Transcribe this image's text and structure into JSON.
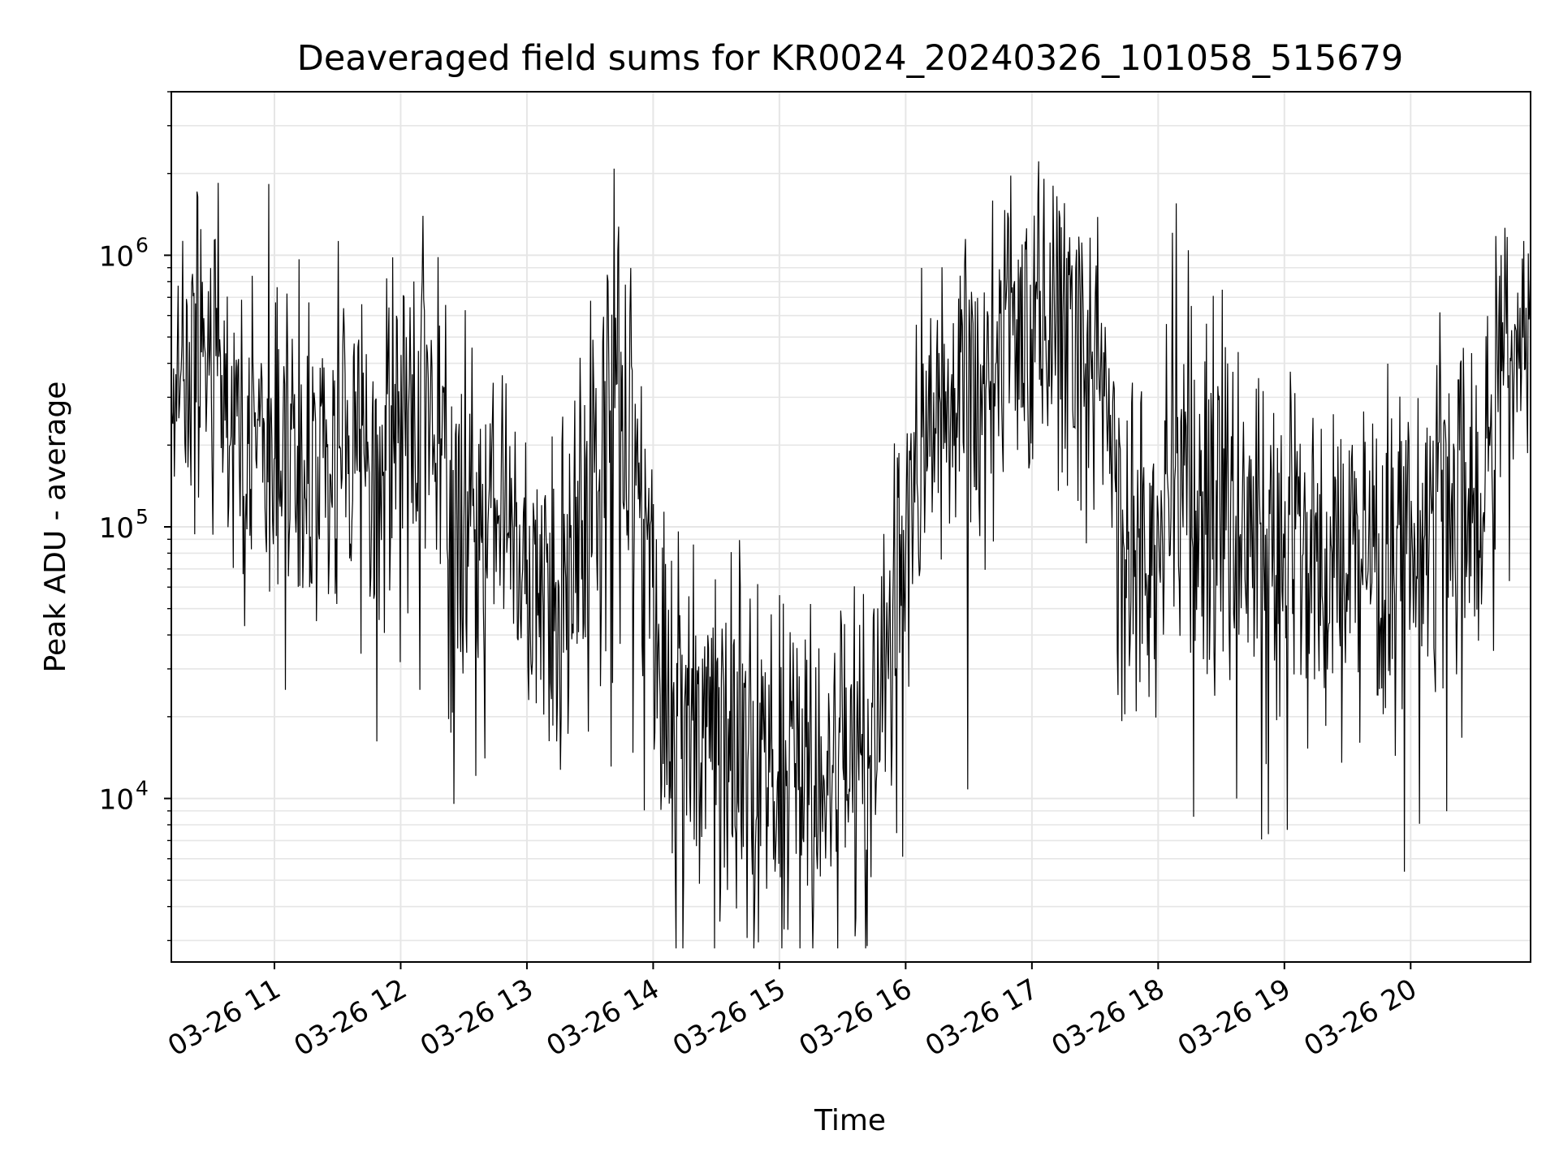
{
  "chart_data": {
    "type": "line",
    "title": "Deaveraged field sums for KR0024_20240326_101058_515679",
    "xlabel": "Time",
    "ylabel": "Peak ADU - average",
    "x_scale": "time",
    "y_scale": "log",
    "xlim": [
      "03-26 10:11",
      "03-26 20:57"
    ],
    "ylim": [
      2500,
      4000000
    ],
    "x_ticks": [
      "03-26 11",
      "03-26 12",
      "03-26 13",
      "03-26 14",
      "03-26 15",
      "03-26 16",
      "03-26 17",
      "03-26 18",
      "03-26 19",
      "03-26 20"
    ],
    "y_ticks": [
      {
        "base": "10",
        "exp": "4",
        "value": 10000
      },
      {
        "base": "10",
        "exp": "5",
        "value": 100000
      },
      {
        "base": "10",
        "exp": "6",
        "value": 1000000
      }
    ],
    "grid": true,
    "line_color": "#000000",
    "grid_color": "#e6e6e6",
    "series": [
      {
        "x": [
          "03-26 10:11",
          "03-26 10:20",
          "03-26 10:30",
          "03-26 10:40",
          "03-26 10:50",
          "03-26 11:00",
          "03-26 11:15",
          "03-26 11:30",
          "03-26 11:45",
          "03-26 12:00",
          "03-26 12:10",
          "03-26 12:20",
          "03-26 12:30",
          "03-26 12:45",
          "03-26 13:00",
          "03-26 13:15",
          "03-26 13:30",
          "03-26 13:40",
          "03-26 13:50",
          "03-26 14:00",
          "03-26 14:15",
          "03-26 14:30",
          "03-26 14:45",
          "03-26 15:00",
          "03-26 15:15",
          "03-26 15:30",
          "03-26 15:45",
          "03-26 15:55",
          "03-26 16:05",
          "03-26 16:15",
          "03-26 16:30",
          "03-26 16:45",
          "03-26 17:00",
          "03-26 17:10",
          "03-26 17:20",
          "03-26 17:35",
          "03-26 17:45",
          "03-26 18:00",
          "03-26 18:15",
          "03-26 18:30",
          "03-26 18:45",
          "03-26 19:00",
          "03-26 19:15",
          "03-26 19:30",
          "03-26 19:45",
          "03-26 20:00",
          "03-26 20:15",
          "03-26 20:30",
          "03-26 20:45",
          "03-26 20:57"
        ],
        "values": [
          250000,
          400000,
          550000,
          250000,
          200000,
          220000,
          200000,
          180000,
          160000,
          250000,
          300000,
          200000,
          120000,
          100000,
          70000,
          60000,
          90000,
          250000,
          200000,
          40000,
          20000,
          15000,
          14000,
          13000,
          12000,
          13000,
          15000,
          60000,
          150000,
          250000,
          300000,
          350000,
          500000,
          700000,
          500000,
          300000,
          100000,
          90000,
          150000,
          120000,
          100000,
          90000,
          80000,
          75000,
          80000,
          90000,
          120000,
          80000,
          450000,
          500000
        ],
        "noise_amplitude_decades": [
          0.5,
          0.5,
          0.5,
          0.5,
          0.5,
          0.5,
          0.5,
          0.55,
          0.55,
          0.55,
          0.55,
          0.55,
          0.55,
          0.55,
          0.5,
          0.55,
          0.55,
          0.6,
          0.6,
          0.6,
          0.6,
          0.6,
          0.6,
          0.6,
          0.6,
          0.6,
          0.6,
          0.6,
          0.55,
          0.55,
          0.55,
          0.55,
          0.55,
          0.55,
          0.55,
          0.55,
          0.6,
          0.6,
          0.6,
          0.6,
          0.55,
          0.55,
          0.55,
          0.55,
          0.55,
          0.55,
          0.55,
          0.55,
          0.4,
          0.4
        ]
      }
    ]
  }
}
